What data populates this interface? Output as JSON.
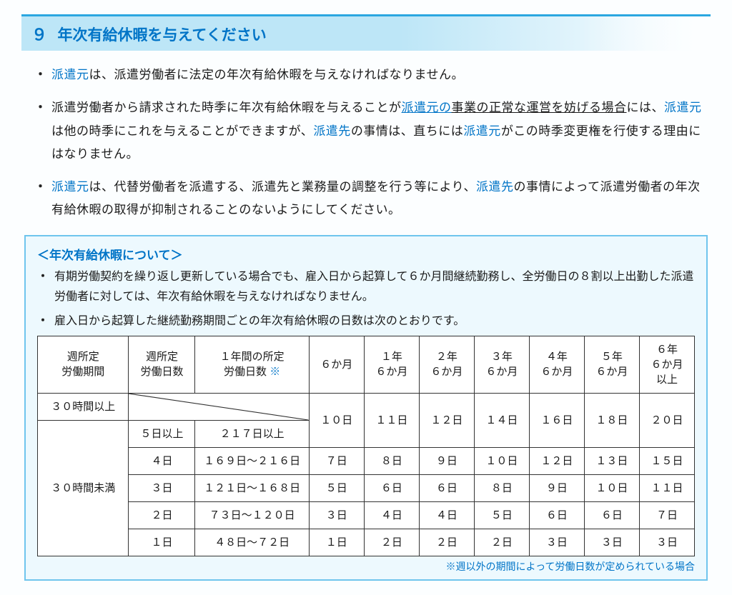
{
  "header": {
    "number": "９",
    "title": "年次有給休暇を与えてください"
  },
  "bullets": [
    {
      "parts": [
        {
          "t": "派遣元",
          "cls": "blue"
        },
        {
          "t": "は、派遣労働者に法定の年次有給休暇を与えなければなりません。"
        }
      ]
    },
    {
      "parts": [
        {
          "t": "派遣労働者から請求された時季に年次有給休暇を与えることが"
        },
        {
          "t": "派遣元の",
          "cls": "blue u"
        },
        {
          "t": "事業の正常な運営を妨げる場合",
          "cls": "u"
        },
        {
          "t": "には、"
        },
        {
          "t": "派遣元",
          "cls": "blue"
        },
        {
          "t": "は他の時季にこれを与えることができますが、"
        },
        {
          "t": "派遣先",
          "cls": "blue"
        },
        {
          "t": "の事情は、直ちには"
        },
        {
          "t": "派遣元",
          "cls": "blue"
        },
        {
          "t": "がこの時季変更権を行使する理由にはなりません。"
        }
      ]
    },
    {
      "parts": [
        {
          "t": "派遣元",
          "cls": "blue"
        },
        {
          "t": "は、代替労働者を派遣する、派遣先と業務量の調整を行う等により、"
        },
        {
          "t": "派遣先",
          "cls": "blue"
        },
        {
          "t": "の事情によって派遣労働者の年次有給休暇の取得が抑制されることのないようにしてください。"
        }
      ]
    }
  ],
  "info": {
    "heading": "＜年次有給休暇について＞",
    "bullets": [
      "有期労働契約を繰り返し更新している場合でも、雇入日から起算して６か月間継続勤務し、全労働日の８割以上出勤した派遣労働者に対しては、年次有給休暇を与えなければなりません。",
      "雇入日から起算した継続勤務期間ごとの年次有給休暇の日数は次のとおりです。"
    ],
    "footnote": "※週以外の期間によって労働日数が定められている場合"
  },
  "table": {
    "head": {
      "col1": "週所定\n労働期間",
      "col2": "週所定\n労働日数",
      "col3_prefix": "１年間の所定\n労働日数 ",
      "col3_mark": "※",
      "months": [
        "６か月",
        "１年\n６か月",
        "２年\n６か月",
        "３年\n６か月",
        "４年\n６か月",
        "５年\n６か月",
        "６年\n６か月\n以上"
      ]
    },
    "rowA_label": "３０時間以上",
    "rowA_days": [
      "１０日",
      "１１日",
      "１２日",
      "１４日",
      "１６日",
      "１８日",
      "２０日"
    ],
    "rowB_first_wkdays": "５日以上",
    "rowB_first_yr": "２１７日以上",
    "groupB_label": "３０時間未満",
    "groupB_rows": [
      {
        "wk": "４日",
        "yr": "１６９日～２１６日",
        "d": [
          "７日",
          "８日",
          "９日",
          "１０日",
          "１２日",
          "１３日",
          "１５日"
        ]
      },
      {
        "wk": "３日",
        "yr": "１２１日～１６８日",
        "d": [
          "５日",
          "６日",
          "６日",
          "８日",
          "９日",
          "１０日",
          "１１日"
        ]
      },
      {
        "wk": "２日",
        "yr": "７３日～１２０日",
        "d": [
          "３日",
          "４日",
          "４日",
          "５日",
          "６日",
          "６日",
          "７日"
        ]
      },
      {
        "wk": "１日",
        "yr": "４８日～７２日",
        "d": [
          "１日",
          "２日",
          "２日",
          "２日",
          "３日",
          "３日",
          "３日"
        ]
      }
    ]
  },
  "colors": {
    "accent": "#0074c7",
    "panel_border": "#6fc5ed",
    "panel_bg": "#edf9fe",
    "header_bg": "#bde6f7"
  }
}
